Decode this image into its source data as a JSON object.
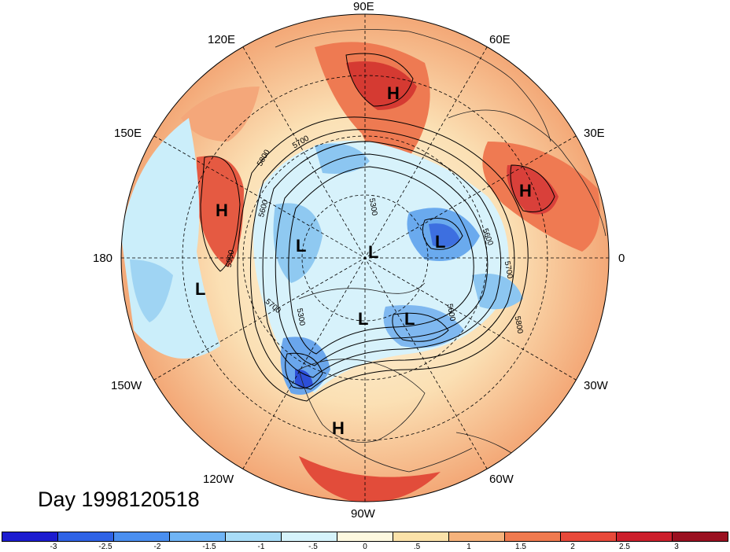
{
  "date_label": "Day 1998120518",
  "longitude_labels": [
    "90E",
    "60E",
    "30E",
    "0",
    "30W",
    "60W",
    "90W",
    "120W",
    "150W",
    "180",
    "150E",
    "120E"
  ],
  "pressure_systems": [
    "H",
    "H",
    "H",
    "H",
    "L",
    "L",
    "L",
    "L",
    "L",
    "L"
  ],
  "contour_labels": [
    "5800",
    "5700",
    "5600",
    "5300",
    "5900",
    "5700",
    "5300",
    "5600",
    "5600",
    "5700",
    "5800"
  ],
  "colorbar": {
    "ticks": [
      "-3",
      "-2.5",
      "-2",
      "-1.5",
      "-1",
      "-.5",
      "0",
      ".5",
      "1",
      "1.5",
      "2",
      "2.5",
      "3"
    ],
    "colors": [
      "#1c1cd0",
      "#2f63e6",
      "#4a8ff0",
      "#6fb4f5",
      "#a8dcf7",
      "#d6f3fb",
      "#fdf8df",
      "#fbe2a9",
      "#f6b37c",
      "#ef7a4f",
      "#e8493a",
      "#cc1f2c",
      "#9a1020"
    ]
  }
}
